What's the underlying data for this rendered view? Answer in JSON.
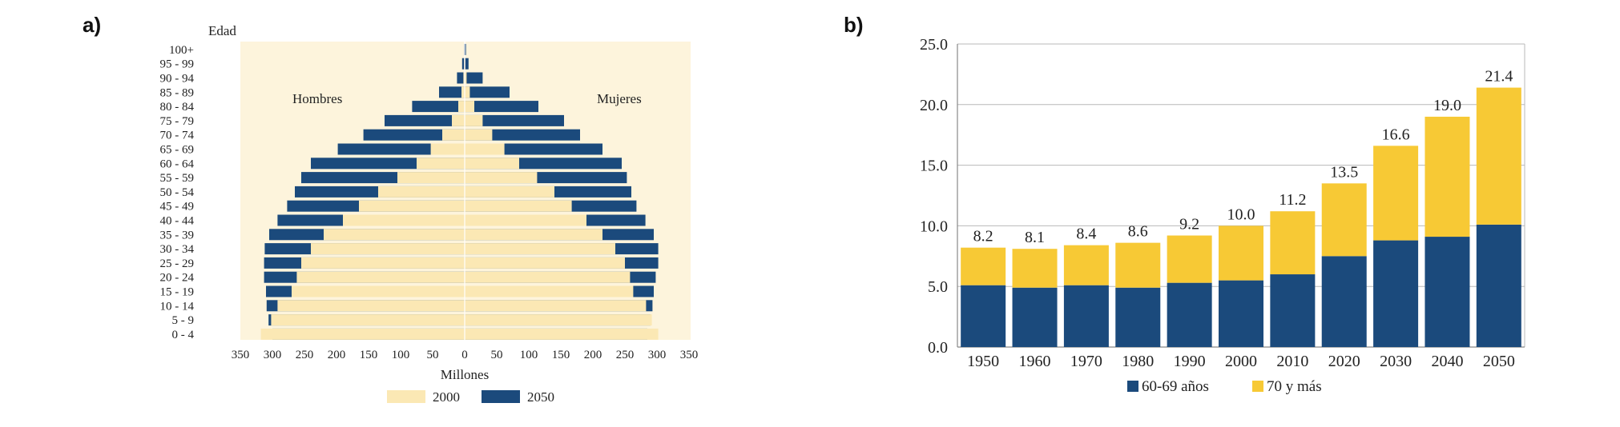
{
  "panels": {
    "a": "a)",
    "b": "b)"
  },
  "chart_data": [
    {
      "type": "bar",
      "subtype": "population-pyramid",
      "y_axis_title": "Edad",
      "xlabel": "Millones",
      "left_group_label": "Hombres",
      "right_group_label": "Mujeres",
      "x_ticks_left": [
        "350",
        "300",
        "250",
        "200",
        "150",
        "100",
        "50",
        "0"
      ],
      "x_ticks_right": [
        "50",
        "100",
        "150",
        "200",
        "250",
        "300",
        "350"
      ],
      "xlim": [
        -350,
        350
      ],
      "categories": [
        "100+",
        "95 - 99",
        "90 - 94",
        "85 - 89",
        "80 - 84",
        "75 - 79",
        "70 - 74",
        "65 - 69",
        "60 - 64",
        "55 - 59",
        "50 - 54",
        "45 - 49",
        "40 - 44",
        "35 - 39",
        "30 - 34",
        "25 - 29",
        "20 - 24",
        "15 - 19",
        "10 - 14",
        "5 - 9",
        "0 - 4"
      ],
      "series": [
        {
          "name": "2000",
          "color": "#fbe8b4",
          "hombres": [
            0,
            1,
            2,
            5,
            10,
            20,
            35,
            53,
            75,
            105,
            135,
            165,
            190,
            220,
            240,
            255,
            262,
            270,
            292,
            302,
            318
          ],
          "mujeres": [
            0,
            1,
            3,
            8,
            15,
            28,
            43,
            62,
            85,
            113,
            140,
            167,
            190,
            215,
            235,
            250,
            258,
            263,
            283,
            292,
            302
          ]
        },
        {
          "name": "2050",
          "color": "#1b4a7c",
          "hombres": [
            1,
            4,
            12,
            40,
            82,
            125,
            158,
            198,
            240,
            255,
            265,
            277,
            292,
            305,
            312,
            313,
            313,
            310,
            309,
            306,
            300
          ],
          "mujeres": [
            2,
            6,
            28,
            70,
            115,
            155,
            180,
            215,
            245,
            253,
            260,
            268,
            282,
            295,
            302,
            302,
            298,
            295,
            293,
            290,
            285
          ]
        }
      ],
      "legend": [
        "2000",
        "2050"
      ],
      "legend_position": "bottom"
    },
    {
      "type": "bar",
      "subtype": "stacked",
      "categories": [
        "1950",
        "1960",
        "1970",
        "1980",
        "1990",
        "2000",
        "2010",
        "2020",
        "2030",
        "2040",
        "2050"
      ],
      "series": [
        {
          "name": "60-69 años",
          "color": "#1b4a7c",
          "values": [
            5.1,
            4.9,
            5.1,
            4.9,
            5.3,
            5.5,
            6.0,
            7.5,
            8.8,
            9.1,
            10.1
          ]
        },
        {
          "name": "70 y más",
          "color": "#f7c935",
          "values": [
            3.1,
            3.2,
            3.3,
            3.7,
            3.9,
            4.5,
            5.2,
            6.0,
            7.8,
            9.9,
            11.3
          ]
        }
      ],
      "totals": [
        "8.2",
        "8.1",
        "8.4",
        "8.6",
        "9.2",
        "10.0",
        "11.2",
        "13.5",
        "16.6",
        "19.0",
        "21.4"
      ],
      "y_ticks": [
        "0.0",
        "5.0",
        "10.0",
        "15.0",
        "20.0",
        "25.0"
      ],
      "ylim": [
        0,
        25
      ],
      "grid": true,
      "legend": [
        "60-69 años",
        "70 y más"
      ],
      "legend_position": "bottom"
    }
  ]
}
